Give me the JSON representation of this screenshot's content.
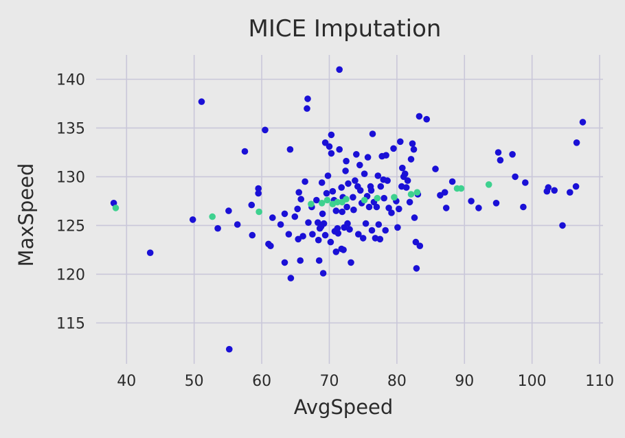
{
  "chart_data": {
    "type": "scatter",
    "title": "MICE Imputation",
    "xlabel": "AvgSpeed",
    "ylabel": "MaxSpeed",
    "xlim": [
      35.5,
      110.5
    ],
    "ylim": [
      110.8,
      142.5
    ],
    "xticks": [
      40,
      50,
      60,
      70,
      80,
      90,
      100,
      110
    ],
    "yticks": [
      115,
      120,
      125,
      130,
      135,
      140
    ],
    "grid": true,
    "series": [
      {
        "color": "#1a10d6",
        "points": [
          [
            38.1,
            127.3
          ],
          [
            43.5,
            122.2
          ],
          [
            49.8,
            125.6
          ],
          [
            51.1,
            137.7
          ],
          [
            53.5,
            124.7
          ],
          [
            55.1,
            126.5
          ],
          [
            55.2,
            112.3
          ],
          [
            56.4,
            125.1
          ],
          [
            57.5,
            132.6
          ],
          [
            58.5,
            127.1
          ],
          [
            58.6,
            124.0
          ],
          [
            59.5,
            128.8
          ],
          [
            59.5,
            128.3
          ],
          [
            60.5,
            134.8
          ],
          [
            61.0,
            123.1
          ],
          [
            61.3,
            122.9
          ],
          [
            61.6,
            125.8
          ],
          [
            62.8,
            125.1
          ],
          [
            63.4,
            126.2
          ],
          [
            63.4,
            121.2
          ],
          [
            64.0,
            124.1
          ],
          [
            64.2,
            132.8
          ],
          [
            64.3,
            119.6
          ],
          [
            64.9,
            125.9
          ],
          [
            65.3,
            126.7
          ],
          [
            65.4,
            123.6
          ],
          [
            65.5,
            128.4
          ],
          [
            65.7,
            121.4
          ],
          [
            65.8,
            127.7
          ],
          [
            66.1,
            123.9
          ],
          [
            66.4,
            129.5
          ],
          [
            66.7,
            137.0
          ],
          [
            66.8,
            138.0
          ],
          [
            66.9,
            125.3
          ],
          [
            67.4,
            126.9
          ],
          [
            67.5,
            124.1
          ],
          [
            68.1,
            127.6
          ],
          [
            68.3,
            125.3
          ],
          [
            68.4,
            123.5
          ],
          [
            68.5,
            121.4
          ],
          [
            68.6,
            124.7
          ],
          [
            68.8,
            124.9
          ],
          [
            68.9,
            129.4
          ],
          [
            69.0,
            126.2
          ],
          [
            69.1,
            120.1
          ],
          [
            69.2,
            125.2
          ],
          [
            69.4,
            124.0
          ],
          [
            69.4,
            133.5
          ],
          [
            69.6,
            128.3
          ],
          [
            69.8,
            130.1
          ],
          [
            70.0,
            133.1
          ],
          [
            70.2,
            123.3
          ],
          [
            70.3,
            134.3
          ],
          [
            70.3,
            132.4
          ],
          [
            70.5,
            128.5
          ],
          [
            70.7,
            127.6
          ],
          [
            70.8,
            124.4
          ],
          [
            71.0,
            126.5
          ],
          [
            71.0,
            122.3
          ],
          [
            71.2,
            124.7
          ],
          [
            71.3,
            124.2
          ],
          [
            71.5,
            141.0
          ],
          [
            71.5,
            132.8
          ],
          [
            71.8,
            128.9
          ],
          [
            71.8,
            122.6
          ],
          [
            71.9,
            126.4
          ],
          [
            72.0,
            127.9
          ],
          [
            72.1,
            122.5
          ],
          [
            72.2,
            124.8
          ],
          [
            72.4,
            130.6
          ],
          [
            72.5,
            131.6
          ],
          [
            72.6,
            126.9
          ],
          [
            72.7,
            125.2
          ],
          [
            72.8,
            129.3
          ],
          [
            73.0,
            124.6
          ],
          [
            73.2,
            121.2
          ],
          [
            73.5,
            127.9
          ],
          [
            73.6,
            126.6
          ],
          [
            73.8,
            129.6
          ],
          [
            74.0,
            132.3
          ],
          [
            74.2,
            129.0
          ],
          [
            74.3,
            124.1
          ],
          [
            74.5,
            131.2
          ],
          [
            74.6,
            128.6
          ],
          [
            74.8,
            127.3
          ],
          [
            75.0,
            123.7
          ],
          [
            75.2,
            130.3
          ],
          [
            75.4,
            125.2
          ],
          [
            75.6,
            128.0
          ],
          [
            75.7,
            132.0
          ],
          [
            75.9,
            126.9
          ],
          [
            76.1,
            129.0
          ],
          [
            76.2,
            128.6
          ],
          [
            76.3,
            124.5
          ],
          [
            76.4,
            134.4
          ],
          [
            76.6,
            127.4
          ],
          [
            76.8,
            123.7
          ],
          [
            77.0,
            126.9
          ],
          [
            77.2,
            130.1
          ],
          [
            77.3,
            125.1
          ],
          [
            77.5,
            123.6
          ],
          [
            77.6,
            129.0
          ],
          [
            77.8,
            132.1
          ],
          [
            78.0,
            129.7
          ],
          [
            78.1,
            127.8
          ],
          [
            78.3,
            124.5
          ],
          [
            78.4,
            132.2
          ],
          [
            78.6,
            129.6
          ],
          [
            78.8,
            126.8
          ],
          [
            79.2,
            126.3
          ],
          [
            79.5,
            132.9
          ],
          [
            79.9,
            127.5
          ],
          [
            80.1,
            124.8
          ],
          [
            80.3,
            126.7
          ],
          [
            80.5,
            133.6
          ],
          [
            80.7,
            129.0
          ],
          [
            80.8,
            130.9
          ],
          [
            81.0,
            130.0
          ],
          [
            81.2,
            130.3
          ],
          [
            81.4,
            128.9
          ],
          [
            81.6,
            129.6
          ],
          [
            81.9,
            127.4
          ],
          [
            82.1,
            131.8
          ],
          [
            82.3,
            133.4
          ],
          [
            82.5,
            132.8
          ],
          [
            82.6,
            125.8
          ],
          [
            82.8,
            123.3
          ],
          [
            82.9,
            120.6
          ],
          [
            83.1,
            128.2
          ],
          [
            83.3,
            136.2
          ],
          [
            83.4,
            122.9
          ],
          [
            84.4,
            135.9
          ],
          [
            85.7,
            130.8
          ],
          [
            86.4,
            128.1
          ],
          [
            87.1,
            128.4
          ],
          [
            87.3,
            126.8
          ],
          [
            88.2,
            129.5
          ],
          [
            91.0,
            127.5
          ],
          [
            92.1,
            126.8
          ],
          [
            94.7,
            127.3
          ],
          [
            95.0,
            132.5
          ],
          [
            95.3,
            131.7
          ],
          [
            97.1,
            132.3
          ],
          [
            97.5,
            130.0
          ],
          [
            98.7,
            126.9
          ],
          [
            99.0,
            129.4
          ],
          [
            102.2,
            128.5
          ],
          [
            102.4,
            128.9
          ],
          [
            103.3,
            128.6
          ],
          [
            104.5,
            125.0
          ],
          [
            105.6,
            128.4
          ],
          [
            106.5,
            129.0
          ],
          [
            106.6,
            133.5
          ],
          [
            107.5,
            135.6
          ]
        ]
      },
      {
        "color": "#3ed18f",
        "points": [
          [
            38.4,
            126.8
          ],
          [
            52.7,
            125.9
          ],
          [
            59.6,
            126.4
          ],
          [
            67.3,
            127.2
          ],
          [
            68.9,
            127.3
          ],
          [
            69.7,
            127.6
          ],
          [
            70.5,
            127.2
          ],
          [
            71.2,
            127.4
          ],
          [
            71.9,
            127.4
          ],
          [
            72.5,
            127.7
          ],
          [
            75.2,
            127.6
          ],
          [
            77.1,
            127.8
          ],
          [
            79.6,
            127.9
          ],
          [
            82.1,
            128.2
          ],
          [
            83.0,
            128.4
          ],
          [
            88.9,
            128.8
          ],
          [
            89.5,
            128.8
          ],
          [
            93.6,
            129.2
          ]
        ]
      }
    ]
  }
}
